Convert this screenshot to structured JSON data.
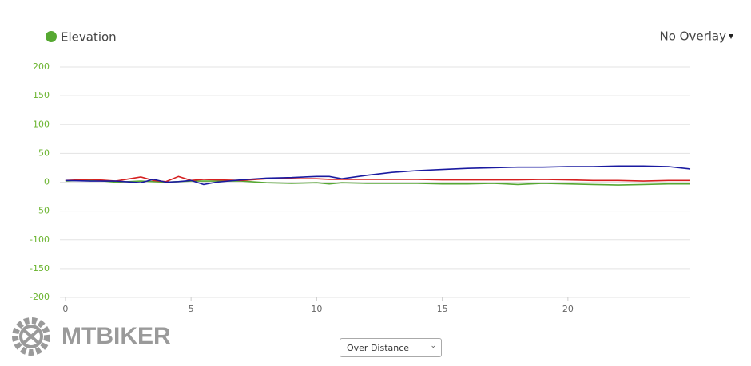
{
  "chart_data": {
    "type": "line",
    "legend": "Elevation",
    "x": [
      0,
      1,
      2,
      3,
      3.5,
      4,
      4.5,
      5,
      5.5,
      6,
      7,
      8,
      9,
      10,
      10.5,
      11,
      12,
      13,
      14,
      15,
      16,
      17,
      18,
      19,
      20,
      21,
      22,
      23,
      24,
      24.87
    ],
    "series": [
      {
        "name": "Elevation",
        "color": "#56a832",
        "values": [
          2,
          4,
          0,
          2,
          1,
          0,
          1,
          2,
          2,
          2,
          2,
          -1,
          -2,
          -1,
          -3,
          -1,
          -2,
          -2,
          -2,
          -3,
          -3,
          -2,
          -4,
          -2,
          -3,
          -4,
          -5,
          -4,
          -3,
          -3
        ]
      },
      {
        "color": "#d62020",
        "values": [
          3,
          5,
          2,
          9,
          3,
          1,
          10,
          3,
          5,
          4,
          3,
          6,
          6,
          6,
          5,
          5,
          5,
          5,
          5,
          4,
          4,
          4,
          4,
          5,
          4,
          3,
          3,
          2,
          3,
          3
        ]
      },
      {
        "color": "#1a1aa0",
        "values": [
          3,
          2,
          2,
          -1,
          5,
          0,
          1,
          3,
          -4,
          0,
          4,
          7,
          8,
          10,
          10,
          6,
          12,
          17,
          20,
          22,
          24,
          25,
          26,
          26,
          27,
          27,
          28,
          28,
          27,
          23
        ]
      }
    ],
    "xlim": [
      -0.22,
      24.87
    ],
    "xticks": [
      0,
      5,
      10,
      15,
      20
    ],
    "ylim": [
      -200,
      200
    ],
    "yticks": [
      200,
      150,
      100,
      50,
      0,
      -50,
      -100,
      -150,
      -200
    ],
    "grid": true
  },
  "overlay_menu": "No Overlay",
  "distance_select": "Over Distance",
  "logo": "MTBIKER"
}
